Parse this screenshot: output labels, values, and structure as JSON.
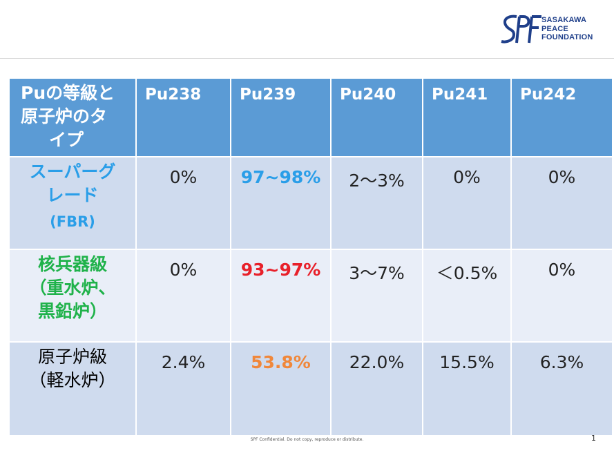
{
  "logo": {
    "lines": [
      "SASAKAWA",
      "PEACE",
      "FOUNDATION"
    ],
    "mark_text": "SPF",
    "color": "#1f3f8a"
  },
  "table": {
    "header": {
      "first_lines": [
        "Puの等級と",
        "原子炉のタ",
        "イプ"
      ],
      "isotopes": [
        "Pu238",
        "Pu239",
        "Pu240",
        "Pu241",
        "Pu242"
      ]
    },
    "rows": [
      {
        "label_lines": [
          "スーパーグ",
          "レード"
        ],
        "label_sub": "(FBR)",
        "label_color": "#2a9ee8",
        "values": [
          "0%",
          "97~98%",
          "2～3%",
          "0%",
          "0%"
        ],
        "highlight_color": "#2a9ee8"
      },
      {
        "label_lines": [
          "核兵器級",
          "（重水炉、",
          "黒鉛炉）"
        ],
        "label_color": "#1fb24a",
        "values": [
          "0%",
          "93~97%",
          "3～7%",
          "＜0.5%",
          "0%"
        ],
        "highlight_color": "#e8202a"
      },
      {
        "label_lines": [
          "原子炉級",
          "（軽水炉）"
        ],
        "label_color": "#000000",
        "values": [
          "2.4%",
          "53.8%",
          "22.0%",
          "15.5%",
          "6.3%"
        ],
        "highlight_color": "#f0873a"
      }
    ]
  },
  "footer": {
    "confidential": "SPF Confidential. Do not copy, reproduce or distribute.",
    "page_number": "1"
  }
}
